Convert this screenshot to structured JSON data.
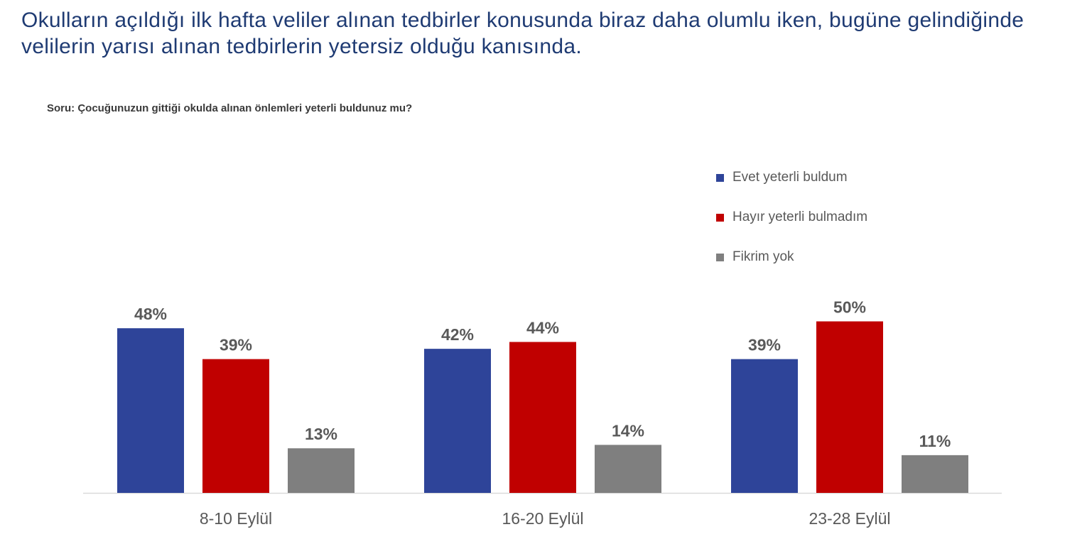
{
  "headline": "Okulların açıldığı ilk hafta veliler alınan tedbirler konusunda biraz daha olumlu iken, bugüne gelindiğinde velilerin yarısı alınan tedbirlerin yetersiz olduğu kanısında.",
  "question": "Soru: Çocuğunuzun gittiği okulda alınan önlemleri  yeterli buldunuz mu?",
  "colors": {
    "evet": "#2e4499",
    "hayir": "#c00000",
    "fikrim_yok": "#7f7f7f",
    "axis": "#d9d9d9",
    "label_text": "#595959",
    "headline": "#1f3b73"
  },
  "chart_data": {
    "type": "bar",
    "categories": [
      "8-10 Eylül",
      "16-20 Eylül",
      "23-28 Eylül"
    ],
    "series": [
      {
        "name": "Evet yeterli buldum",
        "values": [
          48,
          42,
          39
        ],
        "labels": [
          "48%",
          "42%",
          "39%"
        ],
        "color": "#2e4499"
      },
      {
        "name": "Hayır yeterli bulmadım",
        "values": [
          39,
          44,
          50
        ],
        "labels": [
          "39%",
          "44%",
          "50%"
        ],
        "color": "#c00000"
      },
      {
        "name": "Fikrim yok",
        "values": [
          13,
          14,
          11
        ],
        "labels": [
          "13%",
          "14%",
          "11%"
        ],
        "color": "#7f7f7f"
      }
    ],
    "value_format": "percent",
    "ylim": [
      0,
      100
    ],
    "grid": false,
    "legend_position": "top-right",
    "data_labels": true
  }
}
